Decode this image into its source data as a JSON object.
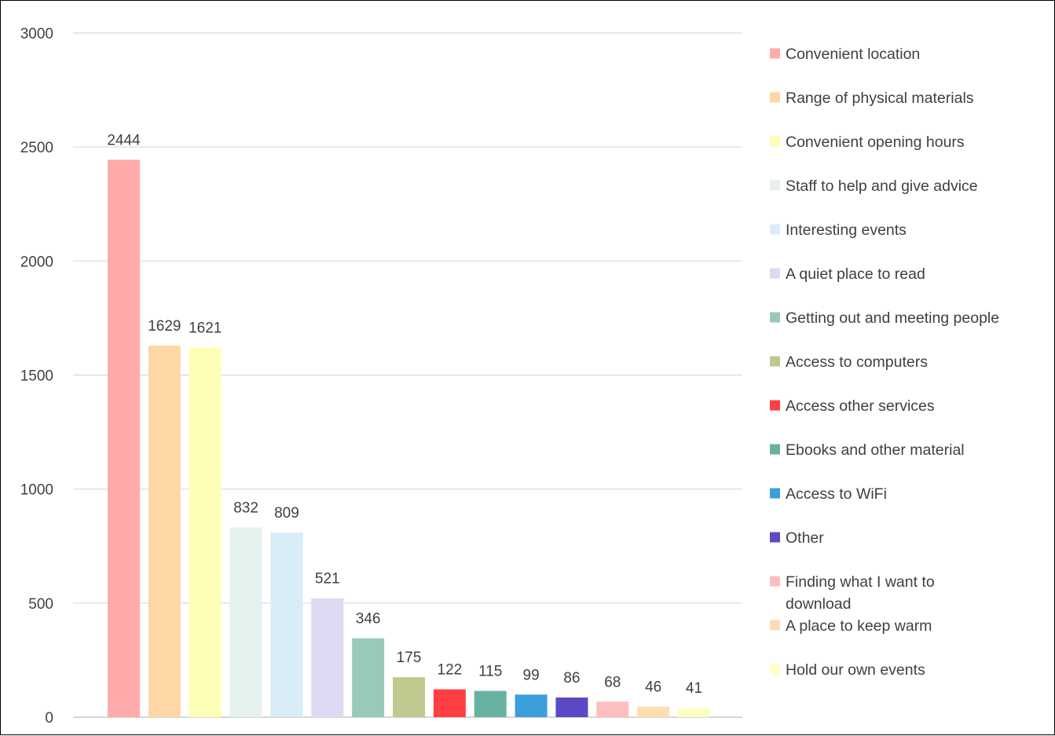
{
  "chart_data": {
    "type": "bar",
    "title": "",
    "xlabel": "",
    "ylabel": "",
    "ylim": [
      0,
      3000
    ],
    "yticks": [
      0,
      500,
      1000,
      1500,
      2000,
      2500,
      3000
    ],
    "grid": true,
    "legend_position": "right",
    "data_labels": true,
    "categories": [
      "Convenient location",
      "Range of physical materials",
      "Convenient opening hours",
      "Staff to help and give advice",
      "Interesting events",
      "A quiet place to read",
      "Getting out and meeting people",
      "Access to computers",
      "Access other services",
      "Ebooks and other material",
      "Access to WiFi",
      "Other",
      "Finding what I want to download",
      "A place to keep warm",
      "Hold our own events"
    ],
    "values": [
      2444,
      1629,
      1621,
      832,
      809,
      521,
      346,
      175,
      122,
      115,
      99,
      86,
      68,
      46,
      41
    ],
    "colors": [
      "#FFABAB",
      "#FFD6A5",
      "#FDFFB6",
      "#E4F1EE",
      "#D9EDF8",
      "#DEDAF4",
      "#99C9BA",
      "#BFC98F",
      "#FF3E41",
      "#66B2A0",
      "#3A9FDB",
      "#5B4AC6",
      "#FFBEBE",
      "#FFDDB0",
      "#FDFFC4"
    ],
    "legend_lines": [
      [
        "Convenient location"
      ],
      [
        "Range of physical materials"
      ],
      [
        "Convenient opening hours"
      ],
      [
        "Staff to help and give advice"
      ],
      [
        "Interesting events"
      ],
      [
        "A quiet place to read"
      ],
      [
        "Getting out and meeting people"
      ],
      [
        "Access to computers"
      ],
      [
        "Access other services"
      ],
      [
        "Ebooks and other material"
      ],
      [
        "Access to WiFi"
      ],
      [
        "Other"
      ],
      [
        "Finding what I want to",
        "download"
      ],
      [
        "A place to keep warm"
      ],
      [
        "Hold our own events"
      ]
    ]
  }
}
